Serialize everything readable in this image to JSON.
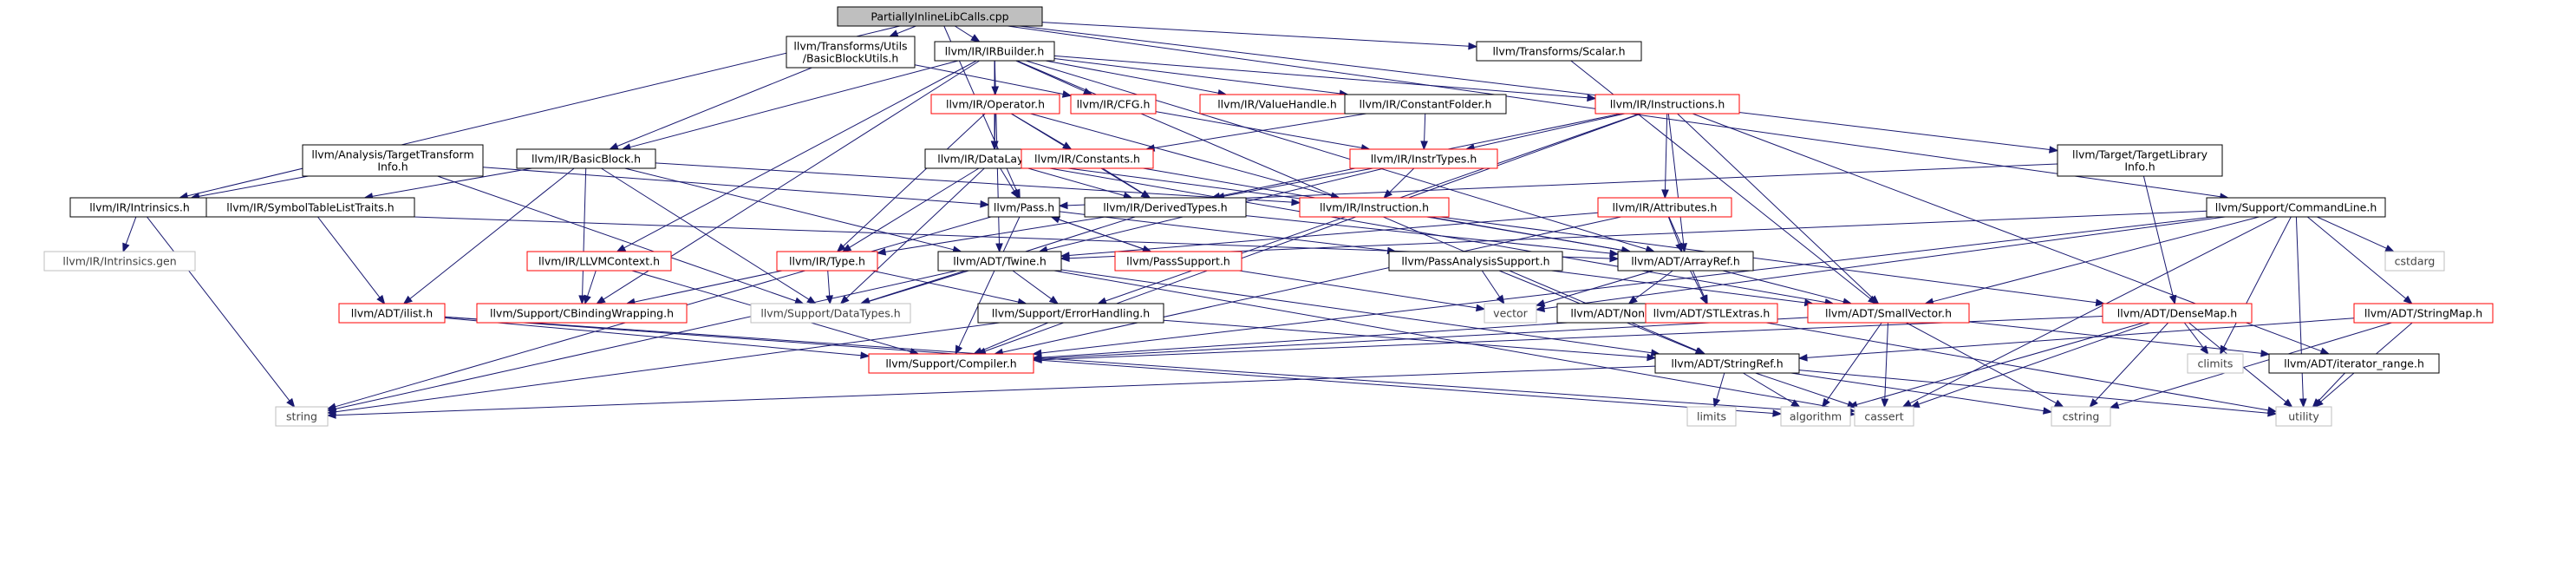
{
  "colors": {
    "root_fill": "#bfbfbf",
    "normal_border": "#000000",
    "red_border": "#ff0000",
    "gray_border": "#bfbfbf",
    "edge": "#191970",
    "text": "#000000",
    "text_gray": "#404040"
  },
  "nodes": [
    {
      "id": "root",
      "lines": [
        "PartiallyInlineLibCalls.cpp"
      ],
      "kind": "root"
    },
    {
      "id": "bbutils",
      "lines": [
        "llvm/Transforms/Utils",
        "/BasicBlockUtils.h"
      ],
      "kind": "normal"
    },
    {
      "id": "irbuilder",
      "lines": [
        "llvm/IR/IRBuilder.h"
      ],
      "kind": "normal"
    },
    {
      "id": "scalar",
      "lines": [
        "llvm/Transforms/Scalar.h"
      ],
      "kind": "normal"
    },
    {
      "id": "operator",
      "lines": [
        "llvm/IR/Operator.h"
      ],
      "kind": "red"
    },
    {
      "id": "cfg",
      "lines": [
        "llvm/IR/CFG.h"
      ],
      "kind": "red"
    },
    {
      "id": "valuehandle",
      "lines": [
        "llvm/IR/ValueHandle.h"
      ],
      "kind": "red"
    },
    {
      "id": "constantfolder",
      "lines": [
        "llvm/IR/ConstantFolder.h"
      ],
      "kind": "normal"
    },
    {
      "id": "instructions",
      "lines": [
        "llvm/IR/Instructions.h"
      ],
      "kind": "red"
    },
    {
      "id": "tti",
      "lines": [
        "llvm/Analysis/TargetTransform",
        "Info.h"
      ],
      "kind": "normal"
    },
    {
      "id": "basicblock",
      "lines": [
        "llvm/IR/BasicBlock.h"
      ],
      "kind": "normal"
    },
    {
      "id": "datalayout",
      "lines": [
        "llvm/IR/DataLayout.h"
      ],
      "kind": "normal"
    },
    {
      "id": "constants",
      "lines": [
        "llvm/IR/Constants.h"
      ],
      "kind": "red"
    },
    {
      "id": "instrtypes",
      "lines": [
        "llvm/IR/InstrTypes.h"
      ],
      "kind": "red"
    },
    {
      "id": "targetlibinfo",
      "lines": [
        "llvm/Target/TargetLibrary",
        "Info.h"
      ],
      "kind": "normal"
    },
    {
      "id": "intrinsics",
      "lines": [
        "llvm/IR/Intrinsics.h"
      ],
      "kind": "normal"
    },
    {
      "id": "symtablelist",
      "lines": [
        "llvm/IR/SymbolTableListTraits.h"
      ],
      "kind": "normal"
    },
    {
      "id": "pass",
      "lines": [
        "llvm/Pass.h"
      ],
      "kind": "normal"
    },
    {
      "id": "derivedtypes",
      "lines": [
        "llvm/IR/DerivedTypes.h"
      ],
      "kind": "normal"
    },
    {
      "id": "instruction",
      "lines": [
        "llvm/IR/Instruction.h"
      ],
      "kind": "red"
    },
    {
      "id": "attributes",
      "lines": [
        "llvm/IR/Attributes.h"
      ],
      "kind": "red"
    },
    {
      "id": "commandline",
      "lines": [
        "llvm/Support/CommandLine.h"
      ],
      "kind": "normal"
    },
    {
      "id": "intrinsicsgen",
      "lines": [
        "llvm/IR/Intrinsics.gen"
      ],
      "kind": "gray"
    },
    {
      "id": "llvmcontext",
      "lines": [
        "llvm/IR/LLVMContext.h"
      ],
      "kind": "red"
    },
    {
      "id": "type",
      "lines": [
        "llvm/IR/Type.h"
      ],
      "kind": "red"
    },
    {
      "id": "twine",
      "lines": [
        "llvm/ADT/Twine.h"
      ],
      "kind": "normal"
    },
    {
      "id": "passsupport",
      "lines": [
        "llvm/PassSupport.h"
      ],
      "kind": "red"
    },
    {
      "id": "passanalysis",
      "lines": [
        "llvm/PassAnalysisSupport.h"
      ],
      "kind": "normal"
    },
    {
      "id": "arrayref",
      "lines": [
        "llvm/ADT/ArrayRef.h"
      ],
      "kind": "normal"
    },
    {
      "id": "cstdarg",
      "lines": [
        "cstdarg"
      ],
      "kind": "gray"
    },
    {
      "id": "ilist",
      "lines": [
        "llvm/ADT/ilist.h"
      ],
      "kind": "red"
    },
    {
      "id": "cbinding",
      "lines": [
        "llvm/Support/CBindingWrapping.h"
      ],
      "kind": "red"
    },
    {
      "id": "datatypes",
      "lines": [
        "llvm/Support/DataTypes.h"
      ],
      "kind": "gray"
    },
    {
      "id": "errorhandling",
      "lines": [
        "llvm/Support/ErrorHandling.h"
      ],
      "kind": "normal"
    },
    {
      "id": "vector",
      "lines": [
        "vector"
      ],
      "kind": "gray"
    },
    {
      "id": "none",
      "lines": [
        "llvm/ADT/None.h"
      ],
      "kind": "normal"
    },
    {
      "id": "stlextras",
      "lines": [
        "llvm/ADT/STLExtras.h"
      ],
      "kind": "red"
    },
    {
      "id": "smallvector",
      "lines": [
        "llvm/ADT/SmallVector.h"
      ],
      "kind": "red"
    },
    {
      "id": "densemap",
      "lines": [
        "llvm/ADT/DenseMap.h"
      ],
      "kind": "red"
    },
    {
      "id": "stringmap",
      "lines": [
        "llvm/ADT/StringMap.h"
      ],
      "kind": "red"
    },
    {
      "id": "compiler",
      "lines": [
        "llvm/Support/Compiler.h"
      ],
      "kind": "red"
    },
    {
      "id": "stringref",
      "lines": [
        "llvm/ADT/StringRef.h"
      ],
      "kind": "normal"
    },
    {
      "id": "climits",
      "lines": [
        "climits"
      ],
      "kind": "gray"
    },
    {
      "id": "iterrange",
      "lines": [
        "llvm/ADT/iterator_range.h"
      ],
      "kind": "normal"
    },
    {
      "id": "string",
      "lines": [
        "string"
      ],
      "kind": "gray"
    },
    {
      "id": "limits",
      "lines": [
        "limits"
      ],
      "kind": "gray"
    },
    {
      "id": "algorithm",
      "lines": [
        "algorithm"
      ],
      "kind": "gray"
    },
    {
      "id": "cassert",
      "lines": [
        "cassert"
      ],
      "kind": "gray"
    },
    {
      "id": "cstring",
      "lines": [
        "cstring"
      ],
      "kind": "gray"
    },
    {
      "id": "utility",
      "lines": [
        "utility"
      ],
      "kind": "gray"
    }
  ],
  "edges": [
    [
      "root",
      "bbutils"
    ],
    [
      "root",
      "irbuilder"
    ],
    [
      "root",
      "scalar"
    ],
    [
      "root",
      "intrinsics"
    ],
    [
      "root",
      "pass"
    ],
    [
      "root",
      "targetlibinfo"
    ],
    [
      "root",
      "commandline"
    ],
    [
      "bbutils",
      "basicblock"
    ],
    [
      "bbutils",
      "cfg"
    ],
    [
      "irbuilder",
      "operator"
    ],
    [
      "irbuilder",
      "cfg"
    ],
    [
      "irbuilder",
      "valuehandle"
    ],
    [
      "irbuilder",
      "constantfolder"
    ],
    [
      "irbuilder",
      "instructions"
    ],
    [
      "irbuilder",
      "basicblock"
    ],
    [
      "irbuilder",
      "datalayout"
    ],
    [
      "irbuilder",
      "llvmcontext"
    ],
    [
      "irbuilder",
      "twine"
    ],
    [
      "irbuilder",
      "arrayref"
    ],
    [
      "irbuilder",
      "cbinding"
    ],
    [
      "irbuilder",
      "stringref"
    ],
    [
      "scalar",
      "smallvector"
    ],
    [
      "operator",
      "datalayout"
    ],
    [
      "operator",
      "constants"
    ],
    [
      "operator",
      "derivedtypes"
    ],
    [
      "operator",
      "instruction"
    ],
    [
      "operator",
      "type"
    ],
    [
      "cfg",
      "instrtypes"
    ],
    [
      "constantfolder",
      "constants"
    ],
    [
      "constantfolder",
      "instrtypes"
    ],
    [
      "instructions",
      "instrtypes"
    ],
    [
      "instructions",
      "attributes"
    ],
    [
      "instructions",
      "arrayref"
    ],
    [
      "instructions",
      "smallvector"
    ],
    [
      "instructions",
      "derivedtypes"
    ],
    [
      "instructions",
      "errorhandling"
    ],
    [
      "instructions",
      "iterrange"
    ],
    [
      "instructions",
      "compiler"
    ],
    [
      "tti",
      "intrinsics"
    ],
    [
      "tti",
      "pass"
    ],
    [
      "tti",
      "datatypes"
    ],
    [
      "basicblock",
      "symtablelist"
    ],
    [
      "basicblock",
      "ilist"
    ],
    [
      "basicblock",
      "twine"
    ],
    [
      "basicblock",
      "cbinding"
    ],
    [
      "basicblock",
      "datatypes"
    ],
    [
      "basicblock",
      "instruction"
    ],
    [
      "datalayout",
      "pass"
    ],
    [
      "datalayout",
      "derivedtypes"
    ],
    [
      "datalayout",
      "densemap"
    ],
    [
      "datalayout",
      "smallvector"
    ],
    [
      "datalayout",
      "datatypes"
    ],
    [
      "datalayout",
      "type"
    ],
    [
      "constants",
      "derivedtypes"
    ],
    [
      "constants",
      "arrayref"
    ],
    [
      "instrtypes",
      "instruction"
    ],
    [
      "instrtypes",
      "derivedtypes"
    ],
    [
      "instrtypes",
      "twine"
    ],
    [
      "targetlibinfo",
      "pass"
    ],
    [
      "targetlibinfo",
      "densemap"
    ],
    [
      "intrinsics",
      "intrinsicsgen"
    ],
    [
      "intrinsics",
      "string"
    ],
    [
      "intrinsics",
      "arrayref"
    ],
    [
      "symtablelist",
      "ilist"
    ],
    [
      "pass",
      "passsupport"
    ],
    [
      "pass",
      "passanalysis"
    ],
    [
      "pass",
      "compiler"
    ],
    [
      "pass",
      "string"
    ],
    [
      "derivedtypes",
      "type"
    ],
    [
      "derivedtypes",
      "arrayref"
    ],
    [
      "derivedtypes",
      "datatypes"
    ],
    [
      "instruction",
      "arrayref"
    ],
    [
      "attributes",
      "arrayref"
    ],
    [
      "attributes",
      "stlextras"
    ],
    [
      "attributes",
      "compiler"
    ],
    [
      "attributes",
      "twine"
    ],
    [
      "commandline",
      "twine"
    ],
    [
      "commandline",
      "cstdarg"
    ],
    [
      "commandline",
      "smallvector"
    ],
    [
      "commandline",
      "stringmap"
    ],
    [
      "commandline",
      "vector"
    ],
    [
      "commandline",
      "climits"
    ],
    [
      "commandline",
      "compiler"
    ],
    [
      "commandline",
      "cassert"
    ],
    [
      "commandline",
      "utility"
    ],
    [
      "llvmcontext",
      "cbinding"
    ],
    [
      "llvmcontext",
      "compiler"
    ],
    [
      "type",
      "cbinding"
    ],
    [
      "type",
      "datatypes"
    ],
    [
      "type",
      "errorhandling"
    ],
    [
      "twine",
      "errorhandling"
    ],
    [
      "twine",
      "datatypes"
    ],
    [
      "twine",
      "string"
    ],
    [
      "twine",
      "stringref"
    ],
    [
      "twine",
      "cassert"
    ],
    [
      "passsupport",
      "pass"
    ],
    [
      "passsupport",
      "vector"
    ],
    [
      "passanalysis",
      "vector"
    ],
    [
      "passanalysis",
      "smallvector"
    ],
    [
      "passanalysis",
      "stringref"
    ],
    [
      "arrayref",
      "none"
    ],
    [
      "arrayref",
      "smallvector"
    ],
    [
      "arrayref",
      "vector"
    ],
    [
      "arrayref",
      "stlextras"
    ],
    [
      "ilist",
      "compiler"
    ],
    [
      "ilist",
      "algorithm"
    ],
    [
      "ilist",
      "cassert"
    ],
    [
      "errorhandling",
      "compiler"
    ],
    [
      "errorhandling",
      "stringref"
    ],
    [
      "errorhandling",
      "string"
    ],
    [
      "stlextras",
      "compiler"
    ],
    [
      "stlextras",
      "utility"
    ],
    [
      "smallvector",
      "compiler"
    ],
    [
      "smallvector",
      "algorithm"
    ],
    [
      "smallvector",
      "cassert"
    ],
    [
      "smallvector",
      "cstring"
    ],
    [
      "smallvector",
      "iterrange"
    ],
    [
      "densemap",
      "climits"
    ],
    [
      "densemap",
      "cassert"
    ],
    [
      "densemap",
      "cstring"
    ],
    [
      "densemap",
      "utility"
    ],
    [
      "densemap",
      "algorithm"
    ],
    [
      "densemap",
      "compiler"
    ],
    [
      "stringmap",
      "stringref"
    ],
    [
      "stringmap",
      "cstring"
    ],
    [
      "stringmap",
      "utility"
    ],
    [
      "stringref",
      "algorithm"
    ],
    [
      "stringref",
      "cassert"
    ],
    [
      "stringref",
      "cstring"
    ],
    [
      "stringref",
      "limits"
    ],
    [
      "stringref",
      "string"
    ],
    [
      "stringref",
      "utility"
    ],
    [
      "iterrange",
      "utility"
    ]
  ]
}
